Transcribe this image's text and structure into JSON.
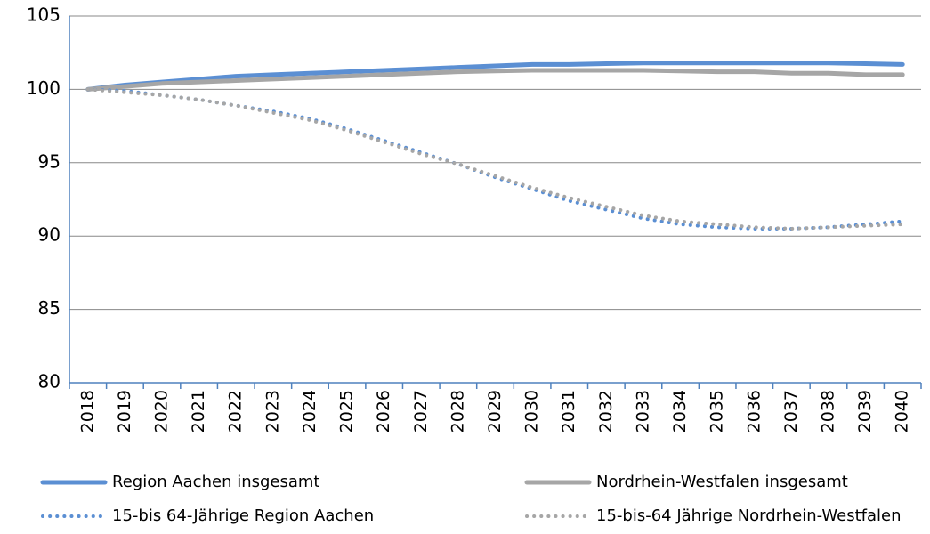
{
  "chart_data": {
    "type": "line",
    "categories": [
      "2018",
      "2019",
      "2020",
      "2021",
      "2022",
      "2023",
      "2024",
      "2025",
      "2026",
      "2027",
      "2028",
      "2029",
      "2030",
      "2031",
      "2032",
      "2033",
      "2034",
      "2035",
      "2036",
      "2037",
      "2038",
      "2039",
      "2040"
    ],
    "series": [
      {
        "name": "Region Aachen insgesamt",
        "color": "#5b8fd3",
        "style": "solid",
        "values": [
          100,
          100.3,
          100.5,
          100.7,
          100.9,
          101.0,
          101.1,
          101.2,
          101.3,
          101.4,
          101.5,
          101.6,
          101.7,
          101.7,
          101.75,
          101.8,
          101.8,
          101.8,
          101.8,
          101.8,
          101.8,
          101.75,
          101.7
        ]
      },
      {
        "name": "Nordrhein-Westfalen insgesamt",
        "color": "#a6a6a6",
        "style": "solid",
        "values": [
          100,
          100.2,
          100.4,
          100.5,
          100.6,
          100.7,
          100.8,
          100.9,
          101.0,
          101.1,
          101.2,
          101.25,
          101.3,
          101.3,
          101.3,
          101.3,
          101.25,
          101.2,
          101.2,
          101.1,
          101.1,
          101.0,
          101.0
        ]
      },
      {
        "name": "15-bis 64-Jährige Region Aachen",
        "color": "#5b8fd3",
        "style": "dotted",
        "values": [
          100,
          99.9,
          99.6,
          99.3,
          98.9,
          98.5,
          98.0,
          97.3,
          96.5,
          95.7,
          94.9,
          94.0,
          93.2,
          92.4,
          91.8,
          91.2,
          90.8,
          90.6,
          90.5,
          90.5,
          90.6,
          90.8,
          91.0
        ]
      },
      {
        "name": "15-bis-64 Jährige Nordrhein-Westfalen",
        "color": "#a6a6a6",
        "style": "dotted",
        "values": [
          100,
          99.8,
          99.6,
          99.3,
          98.9,
          98.4,
          97.9,
          97.2,
          96.4,
          95.6,
          94.9,
          94.1,
          93.3,
          92.6,
          92.0,
          91.4,
          91.0,
          90.8,
          90.6,
          90.5,
          90.6,
          90.7,
          90.8
        ]
      }
    ],
    "ylim": [
      80,
      105
    ],
    "yticks": [
      80,
      85,
      90,
      95,
      100,
      105
    ],
    "grid": true
  }
}
